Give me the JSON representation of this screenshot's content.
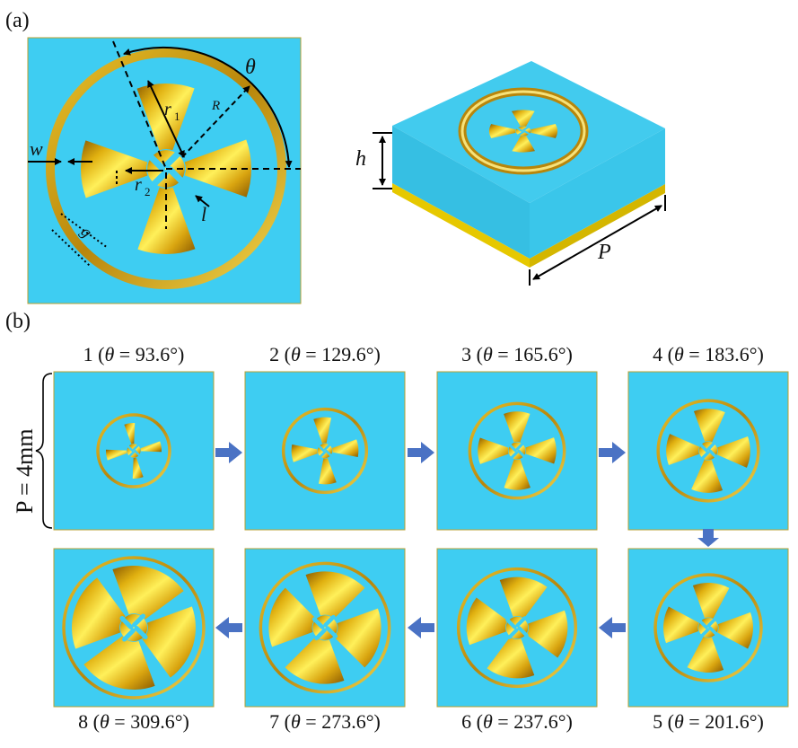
{
  "panel_a": {
    "label": "(a)",
    "symbols": {
      "theta": "θ",
      "r1": "r",
      "r1_sub": "1",
      "R": "R",
      "w": "w",
      "r2": "r",
      "r2_sub": "2",
      "l": "l",
      "g": "g",
      "h": "h",
      "P": "P"
    }
  },
  "panel_b": {
    "label": "(b)",
    "period_label": "P = 4mm",
    "cells": [
      {
        "n": "1",
        "theta": "93.6°",
        "caption_prefix": "1 (",
        "theta_sym": "θ",
        "caption_suffix": " = 93.6°)"
      },
      {
        "n": "2",
        "theta": "129.6°",
        "caption_prefix": "2 (",
        "theta_sym": "θ",
        "caption_suffix": " = 129.6°)"
      },
      {
        "n": "3",
        "theta": "165.6°",
        "caption_prefix": "3 (",
        "theta_sym": "θ",
        "caption_suffix": " = 165.6°)"
      },
      {
        "n": "4",
        "theta": "183.6°",
        "caption_prefix": "4 (",
        "theta_sym": "θ",
        "caption_suffix": " = 183.6°)"
      },
      {
        "n": "5",
        "theta": "201.6°",
        "caption_prefix": "5 (",
        "theta_sym": "θ",
        "caption_suffix": " = 201.6°)"
      },
      {
        "n": "6",
        "theta": "237.6°",
        "caption_prefix": "6 (",
        "theta_sym": "θ",
        "caption_suffix": " = 237.6°)"
      },
      {
        "n": "7",
        "theta": "273.6°",
        "caption_prefix": "7 (",
        "theta_sym": "θ",
        "caption_suffix": " = 273.6°)"
      },
      {
        "n": "8",
        "theta": "309.6°",
        "caption_prefix": "8 (",
        "theta_sym": "θ",
        "caption_suffix": " = 309.6°)"
      }
    ]
  },
  "colors": {
    "substrate": "#3ECDF2",
    "gold_light": "#FFEA4A",
    "gold_dark": "#B07A0A",
    "arrow": "#4A72C4",
    "ground": "#E6C800"
  }
}
